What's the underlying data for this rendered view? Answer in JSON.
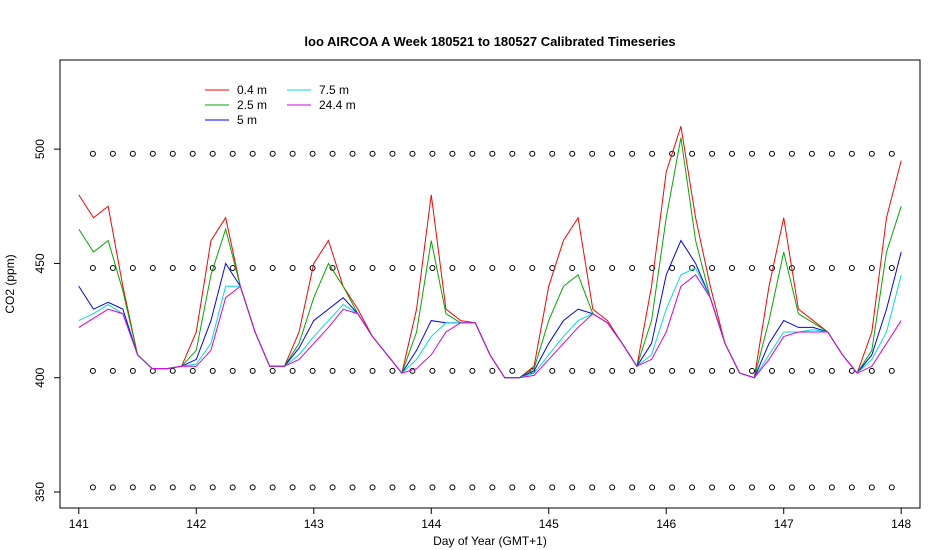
{
  "chart_data": {
    "type": "line",
    "title": "loo AIRCOA A  Week 180521 to 180527  Calibrated Timeseries",
    "x_label": "Day of Year (GMT+1)",
    "y_label": "CO2 (ppm)",
    "xlim": [
      140.84,
      148.16
    ],
    "ylim": [
      343,
      539
    ],
    "xticks": [
      141,
      142,
      143,
      144,
      145,
      146,
      147,
      148
    ],
    "yticks": [
      350,
      400,
      450,
      500
    ],
    "legend": "top-left",
    "x": [
      141,
      141.125,
      141.25,
      141.375,
      141.5,
      141.625,
      141.75,
      141.875,
      142,
      142.125,
      142.25,
      142.375,
      142.5,
      142.625,
      142.75,
      142.875,
      143,
      143.125,
      143.25,
      143.375,
      143.5,
      143.625,
      143.75,
      143.875,
      144,
      144.125,
      144.25,
      144.375,
      144.5,
      144.625,
      144.75,
      144.875,
      145,
      145.125,
      145.25,
      145.375,
      145.5,
      145.625,
      145.75,
      145.875,
      146,
      146.125,
      146.25,
      146.375,
      146.5,
      146.625,
      146.75,
      146.875,
      147,
      147.125,
      147.25,
      147.375,
      147.5,
      147.625,
      147.75,
      147.875,
      148
    ],
    "series": [
      {
        "name": "0.4 m",
        "color": "#ff0000",
        "values": [
          480,
          470,
          475,
          440,
          410,
          404,
          404,
          405,
          420,
          460,
          470,
          440,
          420,
          405,
          405,
          420,
          450,
          460,
          440,
          430,
          418,
          410,
          402,
          430,
          480,
          430,
          425,
          424,
          410,
          400,
          400,
          405,
          440,
          460,
          470,
          430,
          425,
          415,
          405,
          440,
          490,
          510,
          470,
          440,
          415,
          402,
          400,
          440,
          470,
          430,
          425,
          420,
          410,
          402,
          420,
          470,
          495
        ]
      },
      {
        "name": "2.5 m",
        "color": "#00aa00",
        "values": [
          465,
          455,
          460,
          438,
          410,
          404,
          404,
          405,
          412,
          445,
          465,
          440,
          420,
          405,
          405,
          415,
          435,
          450,
          440,
          428,
          418,
          410,
          402,
          420,
          460,
          428,
          424,
          424,
          410,
          400,
          400,
          404,
          425,
          440,
          445,
          428,
          424,
          415,
          405,
          425,
          470,
          505,
          460,
          435,
          415,
          402,
          400,
          425,
          455,
          428,
          424,
          420,
          410,
          402,
          412,
          455,
          475
        ]
      },
      {
        "name": "5 m",
        "color": "#0000ff",
        "values": [
          440,
          430,
          433,
          430,
          410,
          404,
          404,
          405,
          408,
          425,
          450,
          440,
          420,
          405,
          405,
          413,
          425,
          430,
          435,
          428,
          418,
          410,
          402,
          412,
          425,
          424,
          424,
          424,
          410,
          400,
          400,
          403,
          415,
          425,
          430,
          428,
          424,
          415,
          405,
          415,
          445,
          460,
          450,
          435,
          415,
          402,
          400,
          415,
          425,
          422,
          422,
          420,
          410,
          402,
          410,
          430,
          455
        ]
      },
      {
        "name": "7.5 m",
        "color": "#00dddd",
        "values": [
          425,
          428,
          432,
          428,
          410,
          404,
          404,
          405,
          406,
          415,
          440,
          440,
          420,
          405,
          405,
          410,
          418,
          425,
          432,
          428,
          418,
          410,
          402,
          408,
          418,
          424,
          424,
          424,
          410,
          400,
          400,
          402,
          410,
          418,
          425,
          428,
          424,
          415,
          405,
          410,
          430,
          445,
          448,
          435,
          415,
          402,
          400,
          410,
          420,
          420,
          421,
          420,
          410,
          402,
          408,
          420,
          445
        ]
      },
      {
        "name": "24.4 m",
        "color": "#dd00dd",
        "values": [
          422,
          426,
          430,
          428,
          410,
          404,
          404,
          405,
          405,
          412,
          435,
          440,
          420,
          405,
          405,
          408,
          415,
          422,
          430,
          428,
          418,
          410,
          402,
          404,
          410,
          420,
          424,
          424,
          410,
          400,
          400,
          401,
          408,
          415,
          422,
          428,
          424,
          415,
          405,
          408,
          420,
          440,
          445,
          435,
          415,
          402,
          400,
          408,
          418,
          420,
          420,
          420,
          410,
          402,
          405,
          415,
          425
        ]
      }
    ],
    "calibration": {
      "x": [
        141.12,
        141.29,
        141.46,
        141.63,
        141.8,
        141.97,
        142.14,
        142.31,
        142.48,
        142.65,
        142.82,
        142.99,
        143.16,
        143.33,
        143.5,
        143.67,
        143.84,
        144.01,
        144.18,
        144.35,
        144.52,
        144.69,
        144.86,
        145.03,
        145.2,
        145.37,
        145.54,
        145.71,
        145.88,
        146.05,
        146.22,
        146.39,
        146.56,
        146.73,
        146.9,
        147.07,
        147.24,
        147.41,
        147.58,
        147.75,
        147.92
      ],
      "levels": [
        352,
        403,
        448,
        498
      ]
    }
  }
}
